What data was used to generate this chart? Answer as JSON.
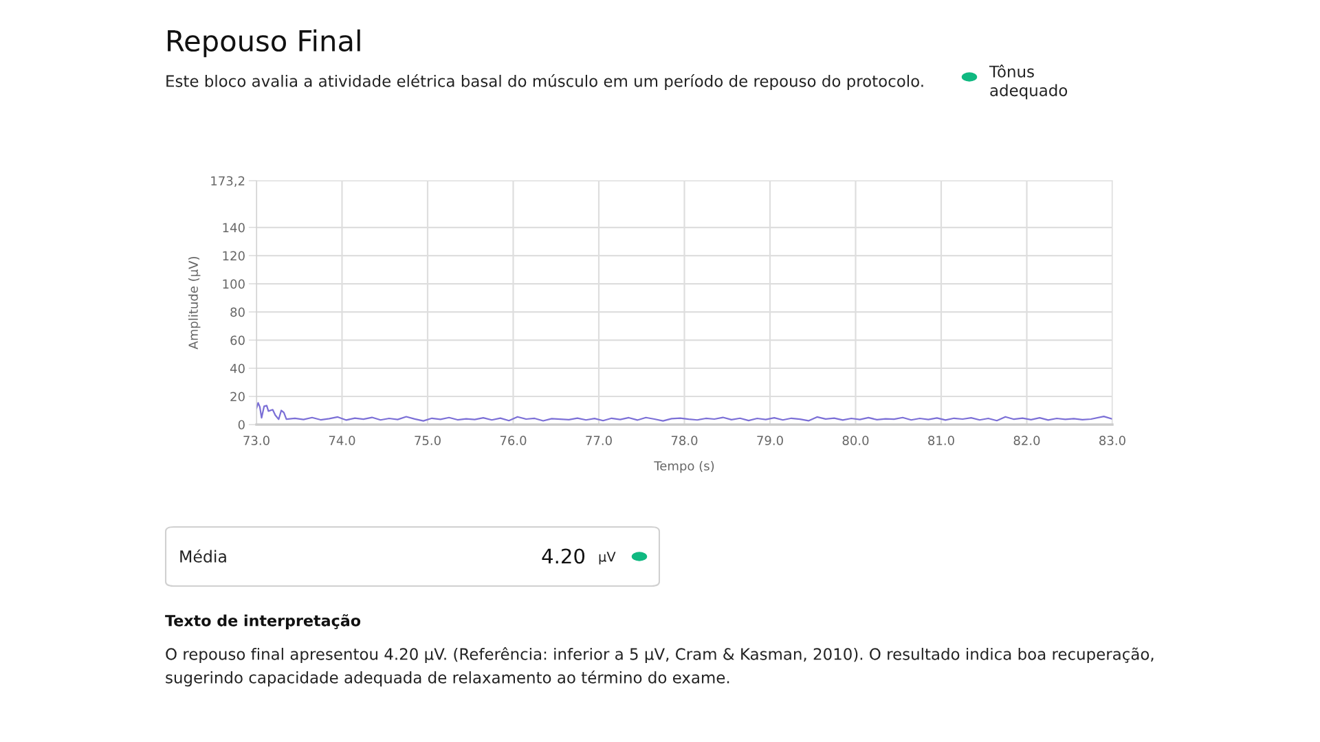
{
  "chart_data": {
    "type": "line",
    "title": "Repouso Final",
    "subtitle": "Este bloco avalia a atividade elétrica basal do músculo em um período de repouso do protocolo.",
    "xlabel": "Tempo (s)",
    "ylabel": "Amplitude (µV)",
    "x": [
      73.0,
      73.02,
      73.04,
      73.06,
      73.09,
      73.12,
      73.14,
      73.19,
      73.22,
      73.26,
      73.29,
      73.32,
      73.35,
      73.45,
      73.55,
      73.65,
      73.75,
      73.85,
      73.95,
      74.05,
      74.15,
      74.25,
      74.35,
      74.45,
      74.55,
      74.65,
      74.75,
      74.85,
      74.95,
      75.05,
      75.15,
      75.25,
      75.35,
      75.45,
      75.55,
      75.65,
      75.75,
      75.85,
      75.95,
      76.05,
      76.15,
      76.25,
      76.35,
      76.45,
      76.55,
      76.65,
      76.75,
      76.85,
      76.95,
      77.05,
      77.15,
      77.25,
      77.35,
      77.45,
      77.55,
      77.65,
      77.75,
      77.85,
      77.95,
      78.05,
      78.15,
      78.25,
      78.35,
      78.45,
      78.55,
      78.65,
      78.75,
      78.85,
      78.95,
      79.05,
      79.15,
      79.25,
      79.35,
      79.45,
      79.55,
      79.65,
      79.75,
      79.85,
      79.95,
      80.05,
      80.15,
      80.25,
      80.35,
      80.45,
      80.55,
      80.65,
      80.75,
      80.85,
      80.95,
      81.05,
      81.15,
      81.25,
      81.35,
      81.45,
      81.55,
      81.65,
      81.75,
      81.85,
      81.95,
      82.05,
      82.15,
      82.25,
      82.35,
      82.45,
      82.55,
      82.65,
      82.75,
      82.9,
      83.0
    ],
    "series": [
      {
        "color": "#7b6fd6",
        "values": [
          11.5,
          15.4,
          12.5,
          4.8,
          13,
          13.5,
          9.6,
          10.6,
          6.7,
          3.8,
          10,
          8.6,
          3.8,
          4.5,
          3.6,
          5,
          3.4,
          4.2,
          5.4,
          3.2,
          4.6,
          3.8,
          5.1,
          3.3,
          4.4,
          3.6,
          5.6,
          4,
          2.6,
          4.5,
          3.7,
          5,
          3.4,
          4.1,
          3.6,
          4.8,
          3.3,
          4.6,
          2.8,
          5.5,
          3.9,
          4.4,
          2.7,
          4.2,
          3.8,
          3.5,
          4.6,
          3.3,
          4.3,
          2.8,
          4.5,
          3.6,
          4.9,
          3.2,
          5,
          3.9,
          2.6,
          4.2,
          4.6,
          3.8,
          3.3,
          4.4,
          3.9,
          5.1,
          3.5,
          4.5,
          2.9,
          4.4,
          3.6,
          4.8,
          3.3,
          4.5,
          3.8,
          2.7,
          5.4,
          4,
          4.6,
          3.2,
          4.4,
          3.6,
          4.9,
          3.5,
          4.1,
          3.8,
          5,
          3.3,
          4.4,
          3.6,
          4.7,
          3.2,
          4.5,
          3.9,
          4.8,
          3.3,
          4.4,
          2.8,
          5.5,
          3.8,
          4.6,
          3.5,
          4.8,
          3.2,
          4.4,
          3.7,
          4.2,
          3.5,
          3.9,
          5.8,
          4
        ]
      }
    ],
    "xlim": [
      73.0,
      83.0
    ],
    "xticks": [
      {
        "value": 73.0,
        "label": "73.0"
      },
      {
        "value": 74.0,
        "label": "74.0"
      },
      {
        "value": 75.0,
        "label": "75.0"
      },
      {
        "value": 76.0,
        "label": "76.0"
      },
      {
        "value": 77.0,
        "label": "77.0"
      },
      {
        "value": 78.0,
        "label": "78.0"
      },
      {
        "value": 79.0,
        "label": "79.0"
      },
      {
        "value": 80.0,
        "label": "80.0"
      },
      {
        "value": 81.0,
        "label": "81.0"
      },
      {
        "value": 82.0,
        "label": "82.0"
      },
      {
        "value": 83.0,
        "label": "83.0"
      }
    ],
    "ylim": [
      0,
      173.2
    ],
    "yticks": [
      0,
      20,
      40,
      60,
      80,
      100,
      120,
      140,
      {
        "value": 173.2,
        "label": "173,2"
      }
    ],
    "grid": true,
    "marker": "none",
    "line_style": "solid",
    "annotations": [
      "Tônus adequado",
      "Média",
      "4.20",
      "µV",
      "Texto de interpretação",
      "O repouso final apresentou 4.20 µV. (Referência: inferior a 5 µV, Cram & Kasman, 2010). O resultado indica boa recuperação, sugerindo capacidade adequada de relaxamento ao término do exame."
    ]
  }
}
